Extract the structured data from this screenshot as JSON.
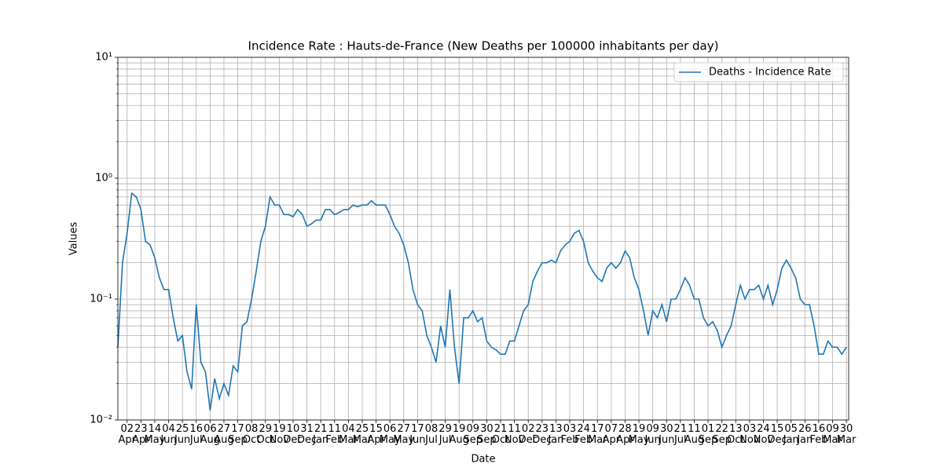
{
  "chart_data": {
    "type": "line",
    "title": "Incidence Rate : Hauts-de-France  (New Deaths per 100000 inhabitants per day)",
    "x_label": "Date",
    "y_label": "Values",
    "log_scale": true,
    "grid": true,
    "legend": "upper right",
    "ylim": [
      0.01,
      10
    ],
    "yticks": [
      {
        "value": 0.01,
        "label": "10⁻²"
      },
      {
        "value": 0.1,
        "label": "10⁻¹"
      },
      {
        "value": 1,
        "label": "10⁰"
      },
      {
        "value": 10,
        "label": "10¹"
      }
    ],
    "yminorticks": [
      0.02,
      0.03,
      0.04,
      0.05,
      0.06,
      0.07,
      0.08,
      0.09,
      0.2,
      0.3,
      0.4,
      0.5,
      0.6,
      0.7,
      0.8,
      0.9,
      2,
      3,
      4,
      5,
      6,
      7,
      8,
      9
    ],
    "categories": [
      null,
      null,
      "02\nApr",
      null,
      null,
      "23\nApr",
      null,
      null,
      "14\nMay",
      null,
      null,
      "04\nJun",
      null,
      null,
      "25\nJun",
      null,
      null,
      "16\nJul",
      null,
      null,
      "06\nAug",
      null,
      null,
      "27\nAug",
      null,
      null,
      "17\nSep",
      null,
      null,
      "08\nOct",
      null,
      null,
      "29\nOct",
      null,
      null,
      "19\nNov",
      null,
      null,
      "10\nDec",
      null,
      null,
      "31\nDec",
      null,
      null,
      "21\nJan",
      null,
      null,
      "11\nFeb",
      null,
      null,
      "04\nMar",
      null,
      null,
      "25\nMar",
      null,
      null,
      "15\nApr",
      null,
      null,
      "06\nMay",
      null,
      null,
      "27\nMay",
      null,
      null,
      "17\nJun",
      null,
      null,
      "08\nJul",
      null,
      null,
      "29\nJul",
      null,
      null,
      "19\nAug",
      null,
      null,
      "09\nSep",
      null,
      null,
      "30\nSep",
      null,
      null,
      "21\nOct",
      null,
      null,
      "11\nNov",
      null,
      null,
      "02\nDec",
      null,
      null,
      "23\nDec",
      null,
      null,
      "13\nJan",
      null,
      null,
      "03\nFeb",
      null,
      null,
      "24\nFeb",
      null,
      null,
      "17\nMar",
      null,
      null,
      "07\nApr",
      null,
      null,
      "28\nApr",
      null,
      null,
      "19\nMay",
      null,
      null,
      "09\nJun",
      null,
      null,
      "30\nJun",
      null,
      null,
      "21\nJul",
      null,
      null,
      "11\nAug",
      null,
      null,
      "01\nSep",
      null,
      null,
      "22\nSep",
      null,
      null,
      "13\nOct",
      null,
      null,
      "03\nNov",
      null,
      null,
      "24\nNov",
      null,
      null,
      "15\nDec",
      null,
      null,
      "05\nJan",
      null,
      null,
      "26\nJan",
      null,
      null,
      "16\nFeb",
      null,
      null,
      "09\nMar",
      null,
      null,
      "30\nMar"
    ],
    "series": [
      {
        "name": "Deaths - Incidence Rate",
        "color": "#1f77b4",
        "values": [
          0.04,
          0.2,
          0.35,
          0.75,
          0.7,
          0.55,
          0.3,
          0.28,
          0.22,
          0.15,
          0.12,
          0.12,
          0.07,
          0.045,
          0.05,
          0.025,
          0.018,
          0.09,
          0.03,
          0.025,
          0.012,
          0.022,
          0.015,
          0.02,
          0.016,
          0.028,
          0.025,
          0.06,
          0.065,
          0.1,
          0.17,
          0.3,
          0.4,
          0.7,
          0.6,
          0.6,
          0.5,
          0.5,
          0.48,
          0.55,
          0.5,
          0.4,
          0.42,
          0.45,
          0.45,
          0.55,
          0.55,
          0.5,
          0.52,
          0.55,
          0.55,
          0.6,
          0.58,
          0.6,
          0.6,
          0.65,
          0.6,
          0.6,
          0.6,
          0.5,
          0.4,
          0.35,
          0.28,
          0.2,
          0.12,
          0.09,
          0.08,
          0.05,
          0.04,
          0.03,
          0.06,
          0.04,
          0.12,
          0.04,
          0.02,
          0.07,
          0.07,
          0.08,
          0.065,
          0.07,
          0.045,
          0.04,
          0.038,
          0.035,
          0.035,
          0.045,
          0.045,
          0.06,
          0.08,
          0.09,
          0.14,
          0.17,
          0.2,
          0.2,
          0.21,
          0.2,
          0.25,
          0.28,
          0.3,
          0.35,
          0.37,
          0.3,
          0.2,
          0.17,
          0.15,
          0.14,
          0.18,
          0.2,
          0.18,
          0.2,
          0.25,
          0.22,
          0.15,
          0.12,
          0.08,
          0.05,
          0.08,
          0.07,
          0.09,
          0.065,
          0.1,
          0.1,
          0.12,
          0.15,
          0.13,
          0.1,
          0.1,
          0.07,
          0.06,
          0.065,
          0.055,
          0.04,
          0.05,
          0.06,
          0.09,
          0.13,
          0.1,
          0.12,
          0.12,
          0.13,
          0.1,
          0.13,
          0.09,
          0.12,
          0.18,
          0.21,
          0.18,
          0.15,
          0.1,
          0.09,
          0.09,
          0.06,
          0.035,
          0.035,
          0.045,
          0.04,
          0.04,
          0.035,
          0.04
        ]
      }
    ]
  }
}
